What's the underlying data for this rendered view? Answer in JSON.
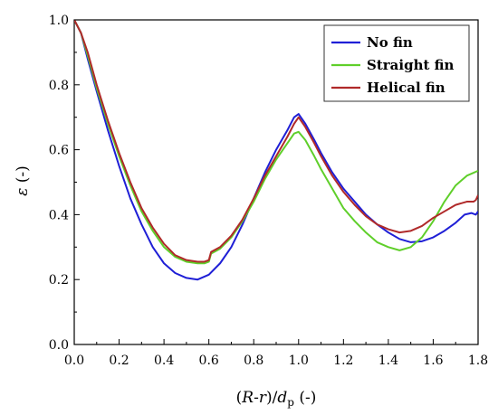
{
  "chart_data": {
    "type": "line",
    "xlim": [
      0,
      1.8
    ],
    "ylim": [
      0,
      1.0
    ],
    "x_ticks": [
      0.0,
      0.2,
      0.4,
      0.6,
      0.8,
      1.0,
      1.2,
      1.4,
      1.6,
      1.8
    ],
    "y_ticks": [
      0.0,
      0.2,
      0.4,
      0.6,
      0.8,
      1.0
    ],
    "x_tick_labels": [
      "0.0",
      "0.2",
      "0.4",
      "0.6",
      "0.8",
      "1.0",
      "1.2",
      "1.4",
      "1.6",
      "1.8"
    ],
    "y_tick_labels": [
      "0.0",
      "0.2",
      "0.4",
      "0.6",
      "0.8",
      "1.0"
    ],
    "xlabel": {
      "prefix": "(",
      "R": "R",
      "dash": "-",
      "r": "r",
      "mid": ")/",
      "d": "d",
      "sub": "p",
      "suffix": " (-)"
    },
    "ylabel": {
      "symbol": "ε",
      "unit": " (-)"
    },
    "grid": false,
    "legend_position": "top-right",
    "series": [
      {
        "name": "No fin",
        "color": "#1f1fd6",
        "x": [
          0.0,
          0.03,
          0.06,
          0.1,
          0.15,
          0.2,
          0.25,
          0.3,
          0.35,
          0.4,
          0.45,
          0.5,
          0.55,
          0.6,
          0.65,
          0.7,
          0.75,
          0.8,
          0.85,
          0.9,
          0.95,
          0.98,
          1.0,
          1.03,
          1.07,
          1.1,
          1.15,
          1.2,
          1.25,
          1.3,
          1.35,
          1.4,
          1.45,
          1.5,
          1.55,
          1.6,
          1.65,
          1.7,
          1.74,
          1.77,
          1.79,
          1.8
        ],
        "y": [
          1.0,
          0.96,
          0.88,
          0.78,
          0.66,
          0.55,
          0.45,
          0.37,
          0.3,
          0.25,
          0.22,
          0.205,
          0.2,
          0.215,
          0.25,
          0.3,
          0.37,
          0.45,
          0.53,
          0.6,
          0.66,
          0.7,
          0.71,
          0.68,
          0.63,
          0.59,
          0.53,
          0.48,
          0.44,
          0.4,
          0.37,
          0.345,
          0.325,
          0.315,
          0.318,
          0.33,
          0.35,
          0.375,
          0.4,
          0.405,
          0.4,
          0.41
        ]
      },
      {
        "name": "Straight fin",
        "color": "#5fcf2a",
        "x": [
          0.0,
          0.03,
          0.06,
          0.1,
          0.15,
          0.2,
          0.25,
          0.3,
          0.35,
          0.4,
          0.45,
          0.5,
          0.55,
          0.58,
          0.6,
          0.61,
          0.65,
          0.7,
          0.75,
          0.8,
          0.85,
          0.9,
          0.95,
          0.98,
          1.0,
          1.03,
          1.07,
          1.1,
          1.15,
          1.2,
          1.25,
          1.3,
          1.35,
          1.4,
          1.45,
          1.5,
          1.55,
          1.6,
          1.65,
          1.7,
          1.75,
          1.8
        ],
        "y": [
          1.0,
          0.96,
          0.89,
          0.79,
          0.68,
          0.58,
          0.49,
          0.41,
          0.35,
          0.3,
          0.27,
          0.255,
          0.25,
          0.25,
          0.255,
          0.28,
          0.295,
          0.33,
          0.38,
          0.44,
          0.51,
          0.57,
          0.62,
          0.65,
          0.655,
          0.63,
          0.58,
          0.54,
          0.48,
          0.42,
          0.38,
          0.345,
          0.315,
          0.3,
          0.29,
          0.3,
          0.33,
          0.38,
          0.44,
          0.49,
          0.52,
          0.535
        ]
      },
      {
        "name": "Helical fin",
        "color": "#b02a2a",
        "x": [
          0.0,
          0.03,
          0.06,
          0.1,
          0.15,
          0.2,
          0.25,
          0.3,
          0.35,
          0.4,
          0.45,
          0.5,
          0.55,
          0.58,
          0.6,
          0.61,
          0.65,
          0.7,
          0.75,
          0.8,
          0.85,
          0.9,
          0.95,
          0.98,
          1.0,
          1.03,
          1.07,
          1.1,
          1.15,
          1.2,
          1.25,
          1.3,
          1.35,
          1.4,
          1.45,
          1.5,
          1.55,
          1.6,
          1.65,
          1.7,
          1.75,
          1.78,
          1.79,
          1.8
        ],
        "y": [
          1.0,
          0.96,
          0.9,
          0.8,
          0.69,
          0.59,
          0.5,
          0.42,
          0.36,
          0.31,
          0.275,
          0.26,
          0.255,
          0.255,
          0.26,
          0.285,
          0.3,
          0.335,
          0.385,
          0.45,
          0.52,
          0.58,
          0.64,
          0.68,
          0.7,
          0.67,
          0.62,
          0.58,
          0.52,
          0.47,
          0.43,
          0.395,
          0.37,
          0.355,
          0.345,
          0.35,
          0.365,
          0.39,
          0.41,
          0.43,
          0.44,
          0.44,
          0.445,
          0.46
        ]
      }
    ]
  }
}
